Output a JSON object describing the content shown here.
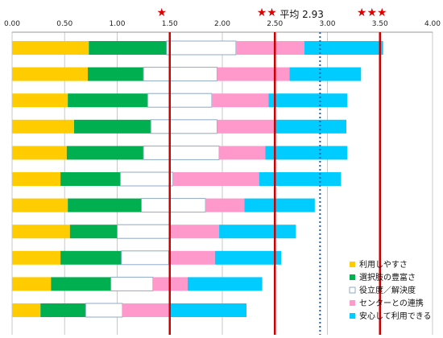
{
  "chart_data": {
    "type": "bar",
    "orientation": "horizontal",
    "stacked": true,
    "xlim": [
      0,
      4
    ],
    "x_ticks": [
      "0.00",
      "0.50",
      "1.00",
      "1.50",
      "2.00",
      "2.50",
      "3.00",
      "3.50",
      "4.00"
    ],
    "tick_values": [
      0,
      0.5,
      1,
      1.5,
      2,
      2.5,
      3,
      3.5,
      4
    ],
    "grid": "vertical",
    "legend_position": "bottom-right",
    "series": [
      {
        "name": "利用しやすさ",
        "color": "#ffcc00",
        "values": [
          0.73,
          0.72,
          0.53,
          0.59,
          0.52,
          0.46,
          0.53,
          0.55,
          0.46,
          0.37,
          0.27
        ]
      },
      {
        "name": "選択肢の豊富さ",
        "color": "#00b050",
        "values": [
          0.74,
          0.53,
          0.76,
          0.73,
          0.73,
          0.57,
          0.7,
          0.45,
          0.58,
          0.57,
          0.43
        ]
      },
      {
        "name": "役立度／解決度",
        "color": "#ffffff",
        "border": "#8ea9c8",
        "values": [
          0.66,
          0.7,
          0.61,
          0.63,
          0.72,
          0.5,
          0.61,
          0.5,
          0.45,
          0.4,
          0.35
        ]
      },
      {
        "name": "センターとの連携",
        "color": "#ff99cc",
        "values": [
          0.65,
          0.69,
          0.54,
          0.54,
          0.44,
          0.82,
          0.37,
          0.47,
          0.44,
          0.33,
          0.45
        ]
      },
      {
        "name": "安心して利用できる",
        "color": "#00ccff",
        "values": [
          0.75,
          0.68,
          0.75,
          0.69,
          0.78,
          0.78,
          0.67,
          0.73,
          0.63,
          0.71,
          0.73
        ]
      }
    ],
    "reference_lines": [
      {
        "value": 1.5,
        "style": "solid",
        "color": "#cc0000",
        "stars": "★"
      },
      {
        "value": 2.5,
        "style": "solid",
        "color": "#cc0000",
        "stars": "★★"
      },
      {
        "value": 3.5,
        "style": "solid",
        "color": "#cc0000",
        "stars": "★★★"
      },
      {
        "value": 2.93,
        "style": "dotted",
        "color": "#1f5fb0",
        "label": "平均 2.93"
      }
    ]
  },
  "colors": {
    "axis": "#999999",
    "grid": "#c8c8c8"
  }
}
